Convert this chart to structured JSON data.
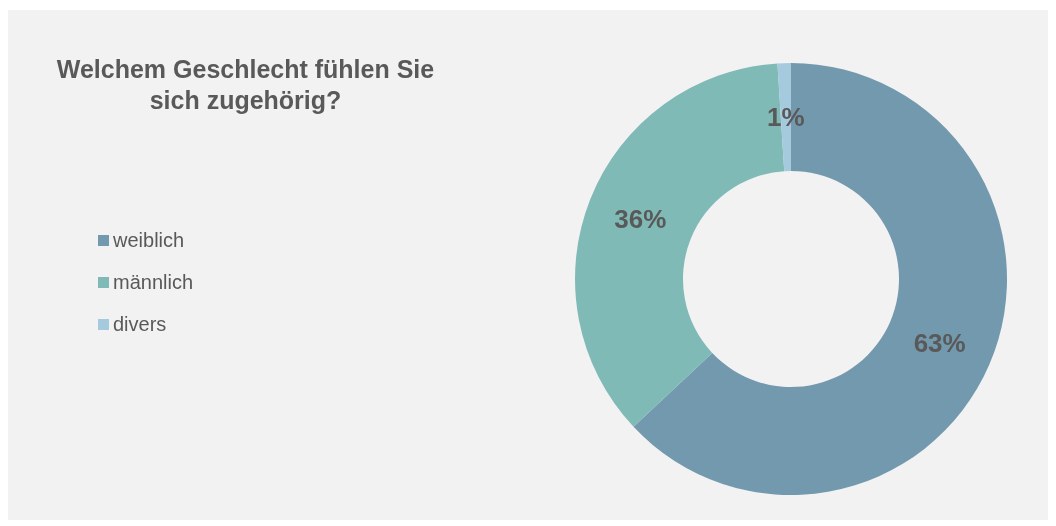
{
  "chart_data": {
    "type": "donut",
    "title": "Welchem Geschlecht fühlen Sie sich zugehörig?",
    "categories": [
      "weiblich",
      "männlich",
      "divers"
    ],
    "values": [
      63,
      36,
      1
    ],
    "value_labels": [
      "63%",
      "36%",
      "1%"
    ],
    "colors": [
      "#7399ae",
      "#80bab7",
      "#a5c9dd"
    ],
    "legend": "left"
  }
}
